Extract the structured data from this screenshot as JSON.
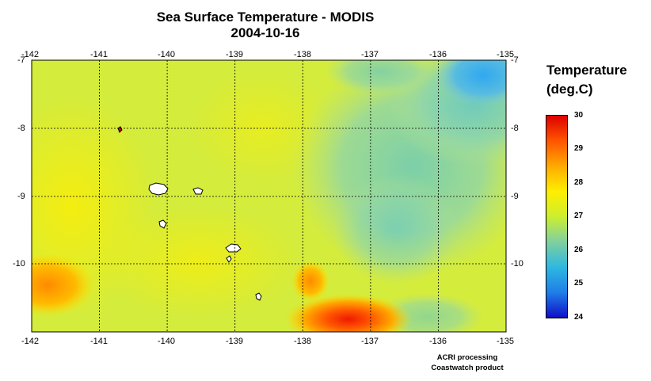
{
  "title": "Sea Surface Temperature - MODIS",
  "date": "2004-10-16",
  "legend": {
    "title_line1": "Temperature",
    "title_line2": "(deg.C)",
    "ticks": [
      "30",
      "29",
      "28",
      "27",
      "26",
      "25",
      "24"
    ],
    "range": [
      24,
      30
    ],
    "colors": [
      "#1010c8",
      "#1f7ee8",
      "#2eb8e0",
      "#7fd0a0",
      "#ccee30",
      "#ffee00",
      "#ffaa00",
      "#ff5500",
      "#dd0000"
    ]
  },
  "map": {
    "lon_range": [
      -142,
      -135
    ],
    "lat_range": [
      -11,
      -7
    ],
    "lon_ticks": [
      "-142",
      "-141",
      "-140",
      "-139",
      "-138",
      "-137",
      "-136",
      "-135"
    ],
    "lat_ticks": [
      "-7",
      "-8",
      "-9",
      "-10"
    ],
    "grid": true,
    "land_color": "#ffffff",
    "islands": [
      "Nuku Hiva",
      "Ua Huka",
      "Ua Pou",
      "Hiva Oa",
      "Tahuata",
      "Fatu Hiva",
      "Eiao"
    ]
  },
  "credit": {
    "line1": "ACRI processing",
    "line2": "Coastwatch product"
  }
}
